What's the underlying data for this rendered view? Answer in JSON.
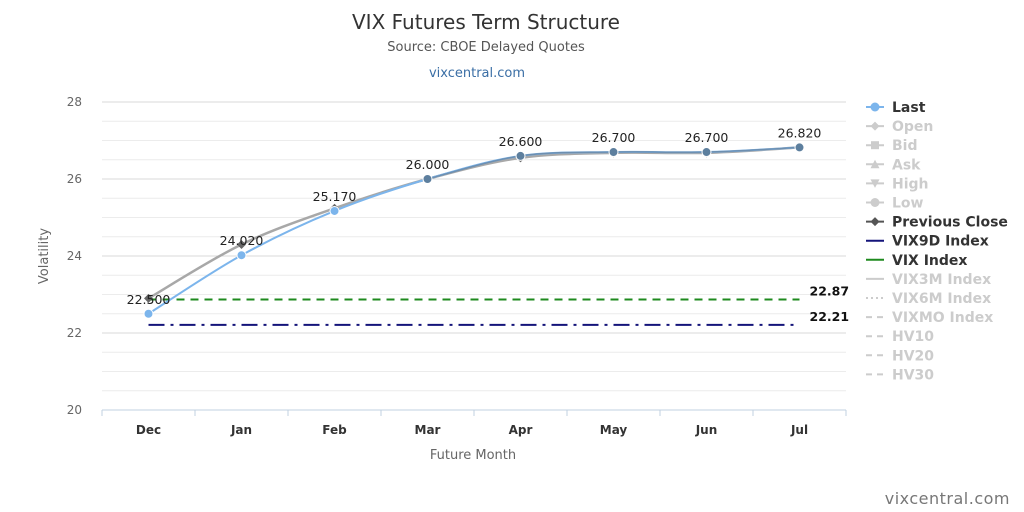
{
  "header": {
    "title": "VIX Futures Term Structure",
    "subtitle": "Source: CBOE Delayed Quotes",
    "link": "vixcentral.com"
  },
  "credit": "vixcentral.com",
  "chart_data": {
    "type": "line",
    "title": "VIX Futures Term Structure",
    "subtitle": "Source: CBOE Delayed Quotes",
    "xlabel": "Future Month",
    "ylabel": "Volatility",
    "categories": [
      "Dec",
      "Jan",
      "Feb",
      "Mar",
      "Apr",
      "May",
      "Jun",
      "Jul"
    ],
    "ylim": [
      20,
      28
    ],
    "yticks": [
      20,
      22,
      24,
      26,
      28
    ],
    "grid": true,
    "legend_position": "right",
    "series": [
      {
        "name": "Last",
        "color": "#7cb5ec",
        "marker": "circle",
        "values": [
          22.5,
          24.02,
          25.17,
          26.0,
          26.6,
          26.7,
          26.7,
          26.82
        ],
        "labels": [
          "22.500",
          "24.020",
          "25.170",
          "26.000",
          "26.600",
          "26.700",
          "26.700",
          "26.820"
        ]
      },
      {
        "name": "Previous Close",
        "color": "#a8a8a8",
        "marker": "diamond",
        "values": [
          22.9,
          24.3,
          25.24,
          26.0,
          26.55,
          26.68,
          26.68,
          26.82
        ]
      }
    ],
    "reference_lines": [
      {
        "name": "VIX Index",
        "value": 22.87,
        "label": "22.87",
        "color": "#1e8a1e",
        "dash": "dash"
      },
      {
        "name": "VIX9D Index",
        "value": 22.21,
        "label": "22.21",
        "color": "#14147a",
        "dash": "dashdot"
      }
    ],
    "legend": [
      {
        "name": "Last",
        "active": true,
        "symbol": "circle",
        "color": "#7cb5ec"
      },
      {
        "name": "Open",
        "active": false,
        "symbol": "diamond"
      },
      {
        "name": "Bid",
        "active": false,
        "symbol": "square"
      },
      {
        "name": "Ask",
        "active": false,
        "symbol": "triangle-up"
      },
      {
        "name": "High",
        "active": false,
        "symbol": "triangle-down"
      },
      {
        "name": "Low",
        "active": false,
        "symbol": "circle"
      },
      {
        "name": "Previous Close",
        "active": true,
        "symbol": "diamond",
        "color": "#555555"
      },
      {
        "name": "VIX9D Index",
        "active": true,
        "symbol": "line",
        "color": "#14147a"
      },
      {
        "name": "VIX Index",
        "active": true,
        "symbol": "line",
        "color": "#1e8a1e"
      },
      {
        "name": "VIX3M Index",
        "active": false,
        "symbol": "line"
      },
      {
        "name": "VIX6M Index",
        "active": false,
        "symbol": "dotted"
      },
      {
        "name": "VIXMO Index",
        "active": false,
        "symbol": "dashed"
      },
      {
        "name": "HV10",
        "active": false,
        "symbol": "dashed"
      },
      {
        "name": "HV20",
        "active": false,
        "symbol": "dashed"
      },
      {
        "name": "HV30",
        "active": false,
        "symbol": "dashed"
      }
    ]
  }
}
